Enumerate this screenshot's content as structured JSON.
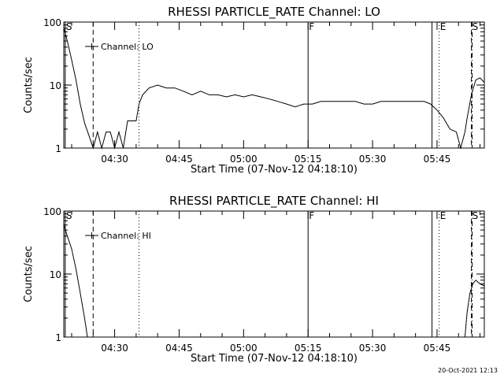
{
  "chart_data": [
    {
      "type": "line",
      "title": "RHESSI PARTICLE_RATE Channel: LO",
      "xlabel": "Start Time (07-Nov-12 04:18:10)",
      "ylabel": "Counts/sec",
      "yscale": "log",
      "ylim": [
        1,
        100
      ],
      "xlim": [
        "04:18:10",
        "05:56:00"
      ],
      "x_tick_labels": [
        "04:30",
        "04:45",
        "05:00",
        "05:15",
        "05:30",
        "05:45"
      ],
      "y_tick_labels": [
        "1",
        "10",
        "100"
      ],
      "legend": {
        "label": "Channel: LO",
        "placement": "top-left"
      },
      "markers": [
        {
          "label": "S",
          "time": "04:18:30",
          "style": "solid"
        },
        {
          "label": "",
          "time": "04:25:00",
          "style": "dashed"
        },
        {
          "label": "",
          "time": "04:35:40",
          "style": "dotted"
        },
        {
          "label": "F",
          "time": "05:15:00",
          "style": "solid"
        },
        {
          "label": "",
          "time": "05:43:50",
          "style": "solid"
        },
        {
          "label": "E",
          "time": "05:45:30",
          "style": "dotted"
        },
        {
          "label": "S",
          "time": "05:53:00",
          "style": "dashed"
        },
        {
          "label": "",
          "time": "05:53:10",
          "style": "dashdot"
        }
      ],
      "series": [
        {
          "name": "Channel: LO",
          "x": [
            "04:18:10",
            "04:19:00",
            "04:20:00",
            "04:21:00",
            "04:22:00",
            "04:23:00",
            "04:24:00",
            "04:25:00",
            "04:26:00",
            "04:27:00",
            "04:28:00",
            "04:29:00",
            "04:30:00",
            "04:31:00",
            "04:32:00",
            "04:33:00",
            "04:34:00",
            "04:35:00",
            "04:35:40",
            "04:36:30",
            "04:38:00",
            "04:40:00",
            "04:42:00",
            "04:44:00",
            "04:46:00",
            "04:48:00",
            "04:50:00",
            "04:52:00",
            "04:54:00",
            "04:56:00",
            "04:58:00",
            "05:00:00",
            "05:02:00",
            "05:04:00",
            "05:06:00",
            "05:08:00",
            "05:10:00",
            "05:12:00",
            "05:14:00",
            "05:16:00",
            "05:18:00",
            "05:20:00",
            "05:22:00",
            "05:24:00",
            "05:26:00",
            "05:28:00",
            "05:30:00",
            "05:32:00",
            "05:34:00",
            "05:36:00",
            "05:38:00",
            "05:40:00",
            "05:42:00",
            "05:43:30",
            "05:45:00",
            "05:46:30",
            "05:48:00",
            "05:49:30",
            "05:50:30",
            "05:51:30",
            "05:52:00",
            "05:53:00",
            "05:54:00",
            "05:55:00",
            "05:56:00"
          ],
          "y": [
            80,
            50,
            25,
            12,
            5,
            2.5,
            1.6,
            1,
            1.8,
            1,
            1.8,
            1.8,
            1,
            1.8,
            1,
            2.7,
            2.7,
            2.7,
            5,
            7,
            9,
            10,
            9,
            9,
            8,
            7,
            8,
            7,
            7,
            6.5,
            7,
            6.5,
            7,
            6.5,
            6,
            5.5,
            5,
            4.5,
            5,
            5,
            5.5,
            5.5,
            5.5,
            5.5,
            5.5,
            5,
            5,
            5.5,
            5.5,
            5.5,
            5.5,
            5.5,
            5.5,
            5,
            4,
            3,
            2,
            1.8,
            1,
            1.8,
            3,
            7,
            12,
            13,
            11
          ]
        }
      ]
    },
    {
      "type": "line",
      "title": "RHESSI PARTICLE_RATE Channel: HI",
      "xlabel": "Start Time (07-Nov-12 04:18:10)",
      "ylabel": "Counts/sec",
      "yscale": "log",
      "ylim": [
        1,
        100
      ],
      "xlim": [
        "04:18:10",
        "05:56:00"
      ],
      "x_tick_labels": [
        "04:30",
        "04:45",
        "05:00",
        "05:15",
        "05:30",
        "05:45"
      ],
      "y_tick_labels": [
        "1",
        "10",
        "100"
      ],
      "legend": {
        "label": "Channel: HI",
        "placement": "top-left"
      },
      "markers": [
        {
          "label": "S",
          "time": "04:18:30",
          "style": "solid"
        },
        {
          "label": "",
          "time": "04:25:00",
          "style": "dashed"
        },
        {
          "label": "",
          "time": "04:35:40",
          "style": "dotted"
        },
        {
          "label": "F",
          "time": "05:15:00",
          "style": "solid"
        },
        {
          "label": "",
          "time": "05:43:50",
          "style": "solid"
        },
        {
          "label": "E",
          "time": "05:45:30",
          "style": "dotted"
        },
        {
          "label": "S",
          "time": "05:53:00",
          "style": "dashed"
        },
        {
          "label": "",
          "time": "05:53:10",
          "style": "dashdot"
        }
      ],
      "series": [
        {
          "name": "Channel: HI",
          "x": [
            "04:18:10",
            "04:19:00",
            "04:20:00",
            "04:21:00",
            "04:22:00",
            "04:23:00",
            "04:23:40",
            "05:51:30",
            "05:52:00",
            "05:52:40",
            "05:53:20",
            "05:54:00",
            "05:55:00",
            "05:56:00"
          ],
          "y": [
            60,
            40,
            25,
            12,
            5,
            2,
            1,
            1,
            2.5,
            5,
            7,
            8,
            7,
            6.5
          ]
        }
      ]
    }
  ],
  "footer": {
    "timestamp": "20-Oct-2021 12:13"
  }
}
